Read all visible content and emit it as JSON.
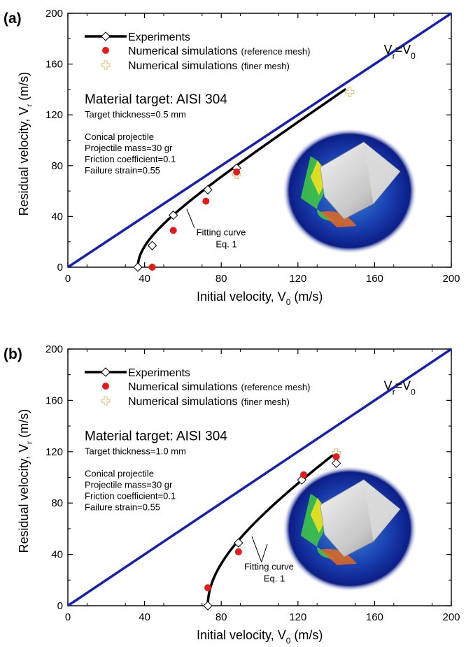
{
  "chart_data": [
    {
      "panel_label": "(a)",
      "type": "line",
      "xlabel": "Initial velocity, V",
      "xlabel_sub": "0",
      "xlabel_unit": "(m/s)",
      "ylabel": "Residual velocity, V",
      "ylabel_sub": "r",
      "ylabel_unit": "(m/s)",
      "xlim": [
        0,
        200
      ],
      "ylim": [
        0,
        200
      ],
      "xticks": [
        0,
        40,
        80,
        120,
        160,
        200
      ],
      "yticks": [
        0,
        40,
        80,
        120,
        160,
        200
      ],
      "grid": false,
      "legend_placement": "top-left",
      "legend": [
        {
          "label": "Experiments",
          "suffix": ""
        },
        {
          "label": "Numerical simulations",
          "suffix": "(reference mesh)"
        },
        {
          "label": "Numerical simulations",
          "suffix": "(finer mesh)"
        }
      ],
      "diagonal_label": {
        "a": "V",
        "a_sub": "r",
        "eq": "=V",
        "b_sub": "0"
      },
      "material_title": "Material target: AISI 304",
      "thickness": "Target thickness=0.5 mm",
      "info_lines": [
        "Conical projectile",
        "Projectile mass=30 gr",
        "Friction coefficient=0.1",
        "Failure strain=0.55"
      ],
      "fitting_label": "Fitting curve",
      "fitting_eq": "Eq. 1",
      "series": [
        {
          "name": "Experiments",
          "x": [
            36.5,
            44,
            55,
            73,
            88
          ],
          "y": [
            0,
            17,
            41,
            61,
            78
          ]
        },
        {
          "name": "Numerical simulations (reference mesh)",
          "x": [
            44,
            55,
            72,
            88
          ],
          "y": [
            0,
            29,
            52,
            75
          ]
        },
        {
          "name": "Numerical simulations (finer mesh)",
          "x": [
            88,
            147
          ],
          "y": [
            73,
            138
          ]
        },
        {
          "name": "Fitting curve",
          "vbl": 36.5,
          "x_end": 145
        },
        {
          "name": "V_r=V_0",
          "x": [
            0,
            200
          ],
          "y": [
            0,
            200
          ]
        }
      ],
      "colors": {
        "diagonal": "#1520b0",
        "reference": "#e31b1b",
        "finer": "#e8c88a",
        "curve": "#000000"
      }
    },
    {
      "panel_label": "(b)",
      "type": "line",
      "xlabel": "Initial velocity, V",
      "xlabel_sub": "0",
      "xlabel_unit": "(m/s)",
      "ylabel": "Residual velocity, V",
      "ylabel_sub": "r",
      "ylabel_unit": "(m/s)",
      "xlim": [
        0,
        200
      ],
      "ylim": [
        0,
        200
      ],
      "xticks": [
        0,
        40,
        80,
        120,
        160,
        200
      ],
      "yticks": [
        0,
        40,
        80,
        120,
        160,
        200
      ],
      "grid": false,
      "legend_placement": "top-left",
      "legend": [
        {
          "label": "Experiments",
          "suffix": ""
        },
        {
          "label": "Numerical simulations",
          "suffix": "(reference mesh)"
        },
        {
          "label": "Numerical simulations",
          "suffix": "(finer mesh)"
        }
      ],
      "diagonal_label": {
        "a": "V",
        "a_sub": "r",
        "eq": "=V",
        "b_sub": "0"
      },
      "material_title": "Material target: AISI 304",
      "thickness": "Target thickness=1.0 mm",
      "info_lines": [
        "Conical projectile",
        "Projectile mass=30 gr",
        "Friction coefficient=0.1",
        "Failure strain=0.55"
      ],
      "fitting_label": "Fitting curve",
      "fitting_eq": "Eq. 1",
      "series": [
        {
          "name": "Experiments",
          "x": [
            73,
            89,
            122,
            140
          ],
          "y": [
            0,
            49,
            98,
            111
          ]
        },
        {
          "name": "Numerical simulations (reference mesh)",
          "x": [
            73,
            89,
            123,
            140
          ],
          "y": [
            14,
            42,
            102,
            116
          ]
        },
        {
          "name": "Numerical simulations (finer mesh)",
          "x": [
            140
          ],
          "y": [
            119
          ]
        },
        {
          "name": "Fitting curve",
          "vbl": 73,
          "x_end": 139
        },
        {
          "name": "V_r=V_0",
          "x": [
            0,
            200
          ],
          "y": [
            0,
            200
          ]
        }
      ],
      "colors": {
        "diagonal": "#1520b0",
        "reference": "#e31b1b",
        "finer": "#e8c88a",
        "curve": "#000000"
      }
    }
  ]
}
